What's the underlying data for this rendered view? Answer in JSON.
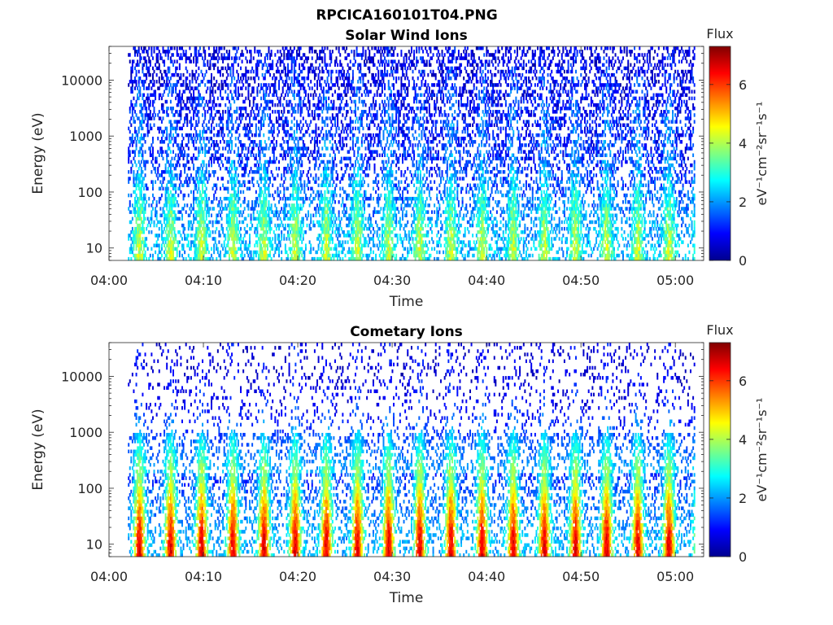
{
  "figure_title": "RPCICA160101T04.PNG",
  "chart_data": [
    {
      "type": "heatmap",
      "title": "Solar Wind Ions",
      "xlabel": "Time",
      "ylabel": "Energy (eV)",
      "y_scale": "log",
      "xlim": [
        "04:00",
        "05:03"
      ],
      "ylim": [
        6,
        40000
      ],
      "x_tick_labels": [
        "04:00",
        "04:10",
        "04:20",
        "04:30",
        "04:40",
        "04:50",
        "05:00"
      ],
      "y_tick_labels": [
        "10",
        "100",
        "1000",
        "10000"
      ],
      "data_start": "04:02",
      "data_end": "05:02",
      "colorbar": {
        "label": "Flux",
        "unit_label": "eV⁻¹cm⁻²sr⁻¹s⁻¹",
        "range": [
          0,
          7.3
        ],
        "tick_labels": [
          "0",
          "2",
          "4",
          "6"
        ],
        "colormap": "jet"
      },
      "approx_log_flux_by_energy": [
        {
          "energy_eV": 10,
          "flux": 3.2
        },
        {
          "energy_eV": 30,
          "flux": 2.8
        },
        {
          "energy_eV": 100,
          "flux": 2.2
        },
        {
          "energy_eV": 300,
          "flux": 1.6
        },
        {
          "energy_eV": 1000,
          "flux": 1.5
        },
        {
          "energy_eV": 3000,
          "flux": 1.3
        },
        {
          "energy_eV": 10000,
          "flux": 1.1
        },
        {
          "energy_eV": 30000,
          "flux": 0.8
        }
      ],
      "pulse_period_min": 3.3,
      "grid": false
    },
    {
      "type": "heatmap",
      "title": "Cometary Ions",
      "xlabel": "Time",
      "ylabel": "Energy (eV)",
      "y_scale": "log",
      "xlim": [
        "04:00",
        "05:03"
      ],
      "ylim": [
        6,
        40000
      ],
      "x_tick_labels": [
        "04:00",
        "04:10",
        "04:20",
        "04:30",
        "04:40",
        "04:50",
        "05:00"
      ],
      "y_tick_labels": [
        "10",
        "100",
        "1000",
        "10000"
      ],
      "data_start": "04:02",
      "data_end": "05:02",
      "colorbar": {
        "label": "Flux",
        "unit_label": "eV⁻¹cm⁻²sr⁻¹s⁻¹",
        "range": [
          0,
          7.3
        ],
        "tick_labels": [
          "0",
          "2",
          "4",
          "6"
        ],
        "colormap": "jet"
      },
      "approx_log_flux_by_energy": [
        {
          "energy_eV": 8,
          "flux": 6.0
        },
        {
          "energy_eV": 15,
          "flux": 5.8
        },
        {
          "energy_eV": 30,
          "flux": 5.2
        },
        {
          "energy_eV": 60,
          "flux": 4.6
        },
        {
          "energy_eV": 100,
          "flux": 4.0
        },
        {
          "energy_eV": 300,
          "flux": 3.0
        },
        {
          "energy_eV": 1000,
          "flux": 2.0
        },
        {
          "energy_eV": 3000,
          "flux": 1.2
        },
        {
          "energy_eV": 10000,
          "flux": 0.9
        }
      ],
      "pulse_period_min": 3.3,
      "grid": false
    }
  ]
}
